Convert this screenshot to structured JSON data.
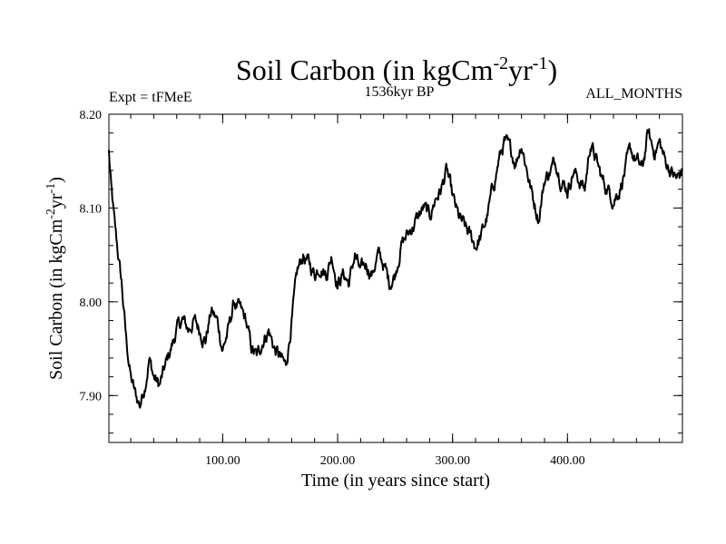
{
  "chart_data": {
    "type": "line",
    "title": "Soil Carbon (in kgCm",
    "title_units": {
      "base": "Soil Carbon (in kgCm",
      "exp1": "-2",
      "mid": "yr",
      "exp2": "-1",
      "close": ")"
    },
    "subtitle": "1536kyr BP",
    "left_note": "Expt = tFMeE",
    "right_note": "ALL_MONTHS",
    "xlabel": "Time (in years since start)",
    "ylabel_units": {
      "base": "Soil Carbon (in kgCm",
      "exp1": "-2",
      "mid": "yr",
      "exp2": "-1",
      "close": ")"
    },
    "xlim": [
      1,
      500
    ],
    "ylim": [
      7.85,
      8.2
    ],
    "x_ticks": [
      {
        "value": 100,
        "label": "100.00"
      },
      {
        "value": 200,
        "label": "200.00"
      },
      {
        "value": 300,
        "label": "300.00"
      },
      {
        "value": 400,
        "label": "400.00"
      }
    ],
    "y_ticks": [
      {
        "value": 7.9,
        "label": "7.90"
      },
      {
        "value": 8.0,
        "label": "8.00"
      },
      {
        "value": 8.1,
        "label": "8.10"
      },
      {
        "value": 8.2,
        "label": "8.20"
      }
    ],
    "series": [
      {
        "name": "Soil Carbon",
        "x": [
          1,
          3,
          6,
          9,
          12,
          16,
          20,
          24,
          28,
          32,
          36,
          40,
          45,
          50,
          55,
          60,
          65,
          70,
          75,
          80,
          85,
          90,
          95,
          100,
          105,
          110,
          115,
          120,
          125,
          130,
          135,
          140,
          145,
          150,
          155,
          160,
          165,
          170,
          175,
          180,
          185,
          190,
          195,
          200,
          205,
          210,
          215,
          220,
          225,
          230,
          235,
          240,
          245,
          250,
          255,
          260,
          265,
          270,
          275,
          280,
          285,
          290,
          295,
          300,
          305,
          310,
          315,
          320,
          325,
          330,
          335,
          340,
          345,
          350,
          355,
          360,
          365,
          370,
          375,
          380,
          385,
          390,
          395,
          400,
          405,
          410,
          415,
          420,
          425,
          430,
          435,
          440,
          445,
          450,
          455,
          460,
          465,
          470,
          475,
          480,
          485,
          490,
          495,
          500
        ],
        "values": [
          8.16,
          8.12,
          8.08,
          8.05,
          8.02,
          7.96,
          7.92,
          7.9,
          7.89,
          7.91,
          7.94,
          7.92,
          7.91,
          7.93,
          7.95,
          7.97,
          7.98,
          7.97,
          7.98,
          7.97,
          7.96,
          7.99,
          7.98,
          7.95,
          7.97,
          8.0,
          7.99,
          7.98,
          7.95,
          7.94,
          7.96,
          7.97,
          7.95,
          7.94,
          7.93,
          7.98,
          8.03,
          8.05,
          8.04,
          8.03,
          8.04,
          8.03,
          8.05,
          8.02,
          8.03,
          8.02,
          8.05,
          8.03,
          8.04,
          8.03,
          8.05,
          8.04,
          8.02,
          8.03,
          8.06,
          8.07,
          8.08,
          8.09,
          8.1,
          8.09,
          8.11,
          8.12,
          8.14,
          8.11,
          8.09,
          8.08,
          8.07,
          8.06,
          8.07,
          8.09,
          8.12,
          8.15,
          8.17,
          8.16,
          8.15,
          8.17,
          8.14,
          8.11,
          8.09,
          8.13,
          8.14,
          8.15,
          8.13,
          8.12,
          8.14,
          8.13,
          8.12,
          8.17,
          8.15,
          8.13,
          8.12,
          8.11,
          8.12,
          8.14,
          8.16,
          8.15,
          8.14,
          8.18,
          8.16,
          8.17,
          8.15,
          8.14,
          8.13,
          8.14
        ]
      }
    ]
  }
}
